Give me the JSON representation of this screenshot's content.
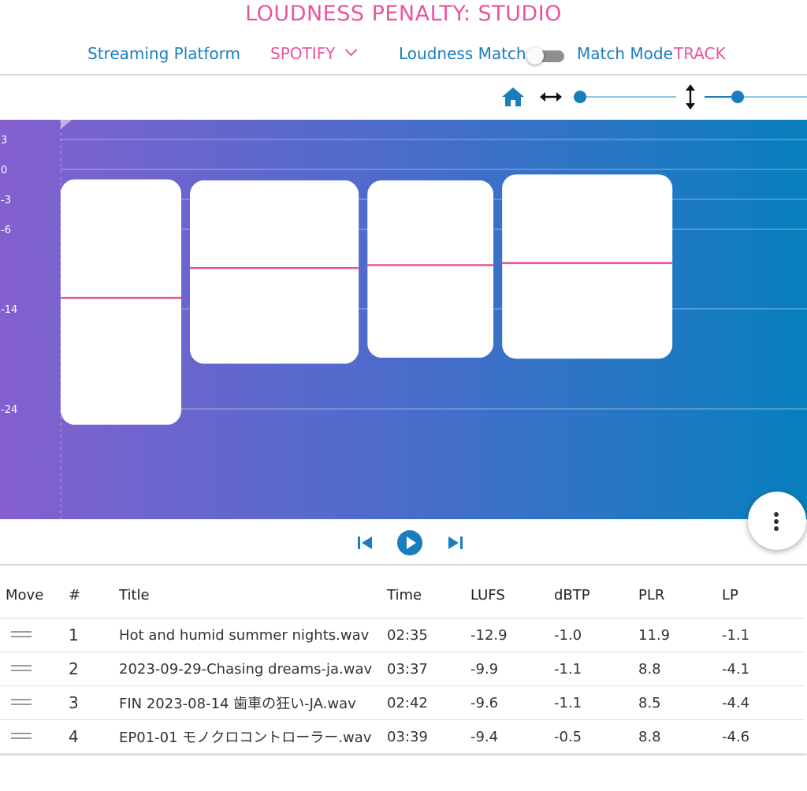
{
  "header": {
    "title": "LOUDNESS PENALTY: STUDIO",
    "platform_label": "Streaming Platform",
    "platform_value": "SPOTIFY",
    "loudness_match_label": "Loudness Match",
    "loudness_match_on": false,
    "match_mode_label": "Match Mode",
    "match_mode_value": "TRACK"
  },
  "toolbar": {
    "home_icon": "home-icon",
    "horizontal_zoom_icon": "horizontal-arrows-icon",
    "vertical_zoom_icon": "vertical-arrows-icon",
    "horizontal_zoom_level": 0,
    "vertical_zoom_level": 0.3
  },
  "colors": {
    "accent": "#e8559e",
    "primary": "#1a7dbf",
    "chart_left": "#8460cf",
    "chart_right": "#087fbe"
  },
  "chart_data": {
    "type": "bar",
    "y_ticks": [
      "3",
      "0",
      "-3",
      "-6",
      "-14",
      "-24"
    ],
    "y_tick_values": [
      3,
      0,
      -3,
      -6,
      -14,
      -24
    ],
    "series": [
      {
        "track": 1,
        "lufs": -12.9,
        "dbtp": -1.0,
        "plr": 11.9,
        "lp": -1.1
      },
      {
        "track": 2,
        "lufs": -9.9,
        "dbtp": -1.1,
        "plr": 8.8,
        "lp": -4.1
      },
      {
        "track": 3,
        "lufs": -9.6,
        "dbtp": -1.1,
        "plr": 8.5,
        "lp": -4.4
      },
      {
        "track": 4,
        "lufs": -9.4,
        "dbtp": -0.5,
        "plr": 8.8,
        "lp": -4.6
      }
    ]
  },
  "transport": {
    "prev_icon": "skip-previous-icon",
    "play_icon": "play-icon",
    "next_icon": "skip-next-icon"
  },
  "menu_icon": "more-vertical-icon",
  "table": {
    "headers": [
      "Move",
      "#",
      "Title",
      "Time",
      "LUFS",
      "dBTP",
      "PLR",
      "LP"
    ],
    "rows": [
      {
        "num": "1",
        "title": "Hot and humid summer nights.wav",
        "time": "02:35",
        "lufs": "-12.9",
        "dbtp": "-1.0",
        "plr": "11.9",
        "lp": "-1.1"
      },
      {
        "num": "2",
        "title": "2023-09-29-Chasing dreams-ja.wav",
        "time": "03:37",
        "lufs": "-9.9",
        "dbtp": "-1.1",
        "plr": "8.8",
        "lp": "-4.1"
      },
      {
        "num": "3",
        "title": "FIN 2023-08-14 歯車の狂い-JA.wav",
        "time": "02:42",
        "lufs": "-9.6",
        "dbtp": "-1.1",
        "plr": "8.5",
        "lp": "-4.4"
      },
      {
        "num": "4",
        "title": "EP01-01 モノクロコントローラー.wav",
        "time": "03:39",
        "lufs": "-9.4",
        "dbtp": "-0.5",
        "plr": "8.8",
        "lp": "-4.6"
      }
    ]
  }
}
